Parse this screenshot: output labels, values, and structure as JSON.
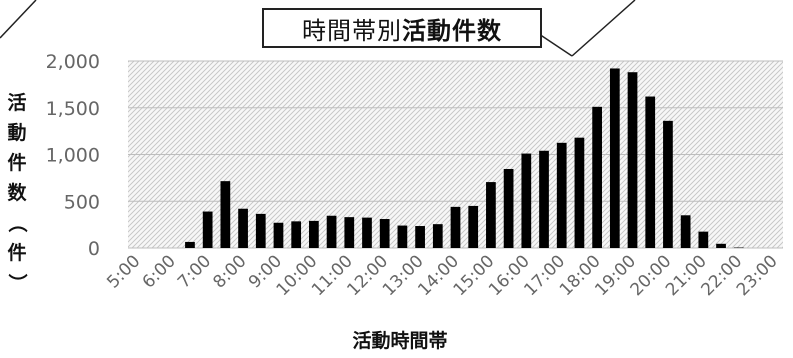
{
  "chart_data": {
    "type": "bar",
    "title": {
      "part1": "時間帯別",
      "part2": "活動件数"
    },
    "xlabel": "活動時間帯",
    "ylabel": {
      "c1": "活",
      "c2": "動",
      "c3": "件",
      "c4": "数",
      "c5": "（",
      "c6": "件",
      "c7": "）"
    },
    "ylim": [
      0,
      2000
    ],
    "yticks": [
      "0",
      "500",
      "1,000",
      "1,500",
      "2,000"
    ],
    "ytick_values": [
      0,
      500,
      1000,
      1500,
      2000
    ],
    "xtick_labels": [
      "5:00",
      "6:00",
      "7:00",
      "8:00",
      "9:00",
      "10:00",
      "11:00",
      "12:00",
      "13:00",
      "14:00",
      "15:00",
      "16:00",
      "17:00",
      "18:00",
      "19:00",
      "20:00",
      "21:00",
      "22:00",
      "23:00"
    ],
    "values": [
      0,
      0,
      0,
      65,
      390,
      715,
      420,
      365,
      270,
      285,
      290,
      345,
      330,
      325,
      310,
      240,
      235,
      255,
      440,
      450,
      705,
      845,
      1010,
      1040,
      1125,
      1180,
      1510,
      1920,
      1880,
      1620,
      1360,
      350,
      175,
      45,
      5,
      0,
      0
    ],
    "bar_color": "#000000",
    "plot_background": "hatched-light-gray",
    "grid": true
  }
}
